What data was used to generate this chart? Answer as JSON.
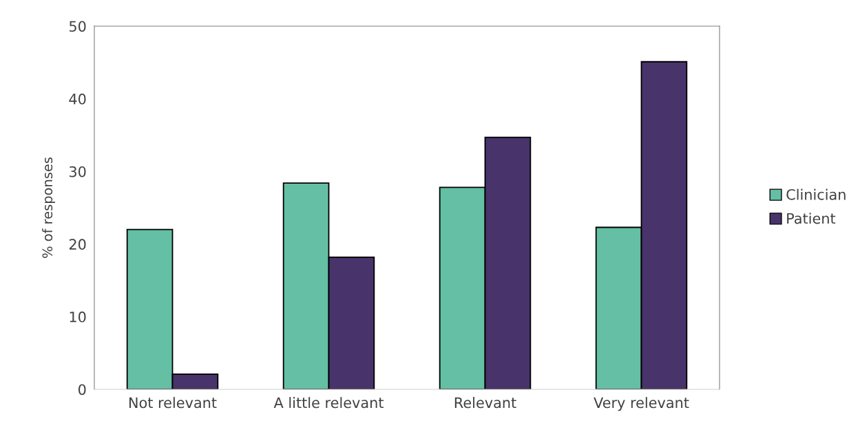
{
  "chart_data": {
    "type": "bar",
    "ylabel": "% of responses",
    "categories": [
      "Not relevant",
      "A little relevant",
      "Relevant",
      "Very relevant"
    ],
    "series": [
      {
        "name": "Clinician",
        "color": "#64bfa4",
        "values": [
          22,
          28.4,
          27.8,
          22.3
        ]
      },
      {
        "name": "Patient",
        "color": "#48336a",
        "values": [
          2.1,
          18.2,
          34.7,
          45.1
        ]
      }
    ],
    "ylim": [
      0,
      50
    ],
    "yticks": [
      0,
      10,
      20,
      30,
      40,
      50
    ],
    "grid": false,
    "legend": "right"
  }
}
